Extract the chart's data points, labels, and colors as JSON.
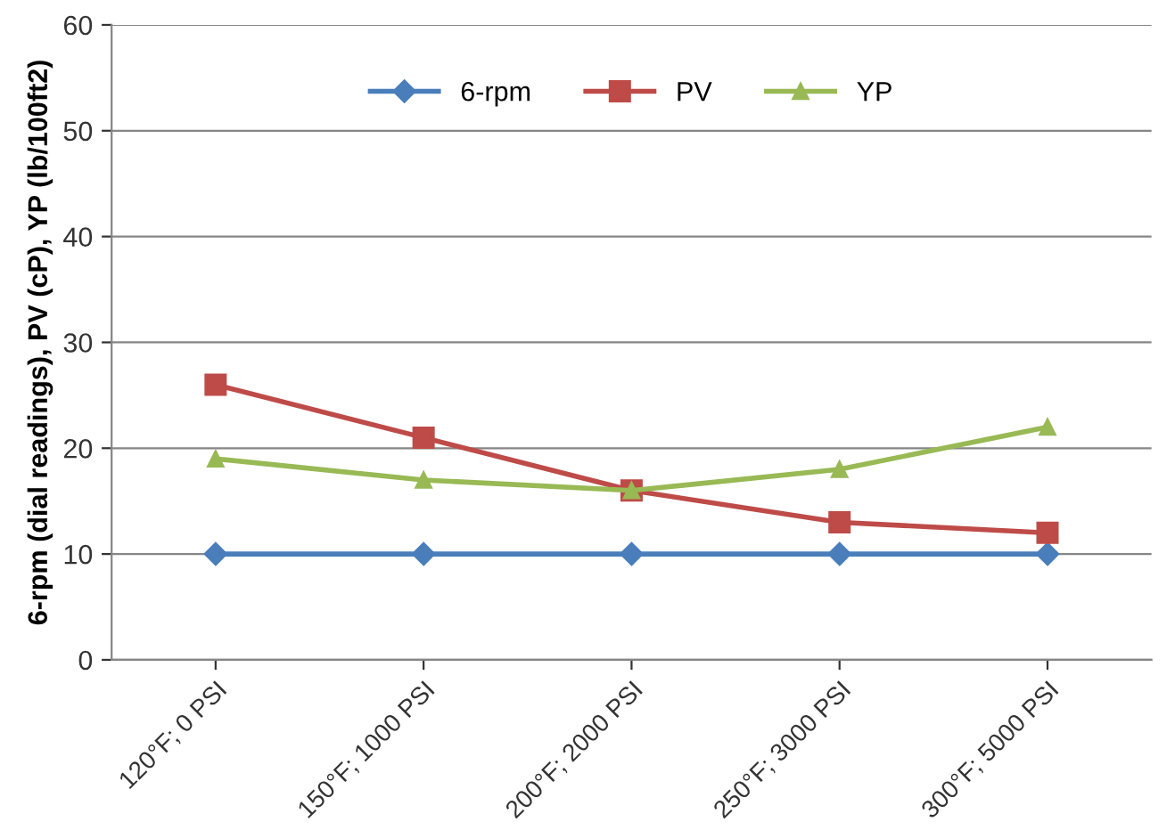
{
  "chart_data": {
    "type": "line",
    "ylabel": "6-rpm (dial readings), PV (cP), YP (lb/100ft2)",
    "categories": [
      "120°F; 0 PSI",
      "150°F; 1000 PSI",
      "200°F; 2000 PSI",
      "250°F; 3000 PSI",
      "300°F; 5000 PSI"
    ],
    "series": [
      {
        "name": "6-rpm",
        "color": "#4a7ebb",
        "marker": "diamond",
        "values": [
          10,
          10,
          10,
          10,
          10
        ]
      },
      {
        "name": "PV",
        "color": "#be4b48",
        "marker": "square",
        "values": [
          26,
          21,
          16,
          13,
          12
        ]
      },
      {
        "name": "YP",
        "color": "#98b954",
        "marker": "triangle",
        "values": [
          19,
          17,
          16,
          18,
          22
        ]
      }
    ],
    "ylim": [
      0,
      60
    ],
    "yticks": [
      0,
      10,
      20,
      30,
      40,
      50,
      60
    ],
    "grid": "y",
    "legend": "top",
    "line_style": "solid"
  }
}
